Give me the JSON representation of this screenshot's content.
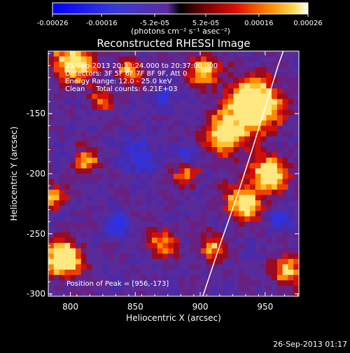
{
  "colorbar": {
    "ticks": [
      "-0.00026",
      "-0.00016",
      "-5.2e-05",
      "5.2e-05",
      "0.00016",
      "0.00026"
    ],
    "tick_values": [
      -0.00026,
      -0.00016,
      -5.2e-05,
      5.2e-05,
      0.00016,
      0.00026
    ],
    "range": [
      -0.00026,
      0.00026
    ],
    "unit_label": "(photons cm⁻² s⁻¹ asec⁻²)"
  },
  "chart_data": {
    "type": "heatmap",
    "title": "Reconstructed RHESSI Image",
    "xlabel": "Heliocentric X (arcsec)",
    "ylabel": "Heliocentric Y (arcsec)",
    "xlim": [
      783,
      976
    ],
    "ylim": [
      -302,
      -98
    ],
    "xticks": [
      800,
      850,
      900,
      950
    ],
    "yticks": [
      -150,
      -200,
      -250,
      -300
    ],
    "xtick_labels": [
      "800",
      "850",
      "900",
      "950"
    ],
    "ytick_labels": [
      "-150",
      "-200",
      "-250",
      "-300"
    ],
    "limb_curve": [
      [
        902,
        -302
      ],
      [
        915,
        -260
      ],
      [
        928,
        -220
      ],
      [
        940,
        -180
      ],
      [
        950,
        -145
      ],
      [
        960,
        -110
      ],
      [
        964,
        -98
      ]
    ],
    "annotations": [
      "25-Sep-2013 20:33:24.000 to 20:37:00.000",
      "Detectors: 3F 5F 6F 7F 8F 9F, Att 0",
      "Energy Range: 12.0 - 25.0 keV",
      "Clean     Total counts: 6.21E+03"
    ],
    "peak_label": "Position of Peak = [956,-173]",
    "peak": [
      956,
      -173
    ]
  },
  "footer": {
    "timestamp": "26-Sep-2013 01:17"
  }
}
